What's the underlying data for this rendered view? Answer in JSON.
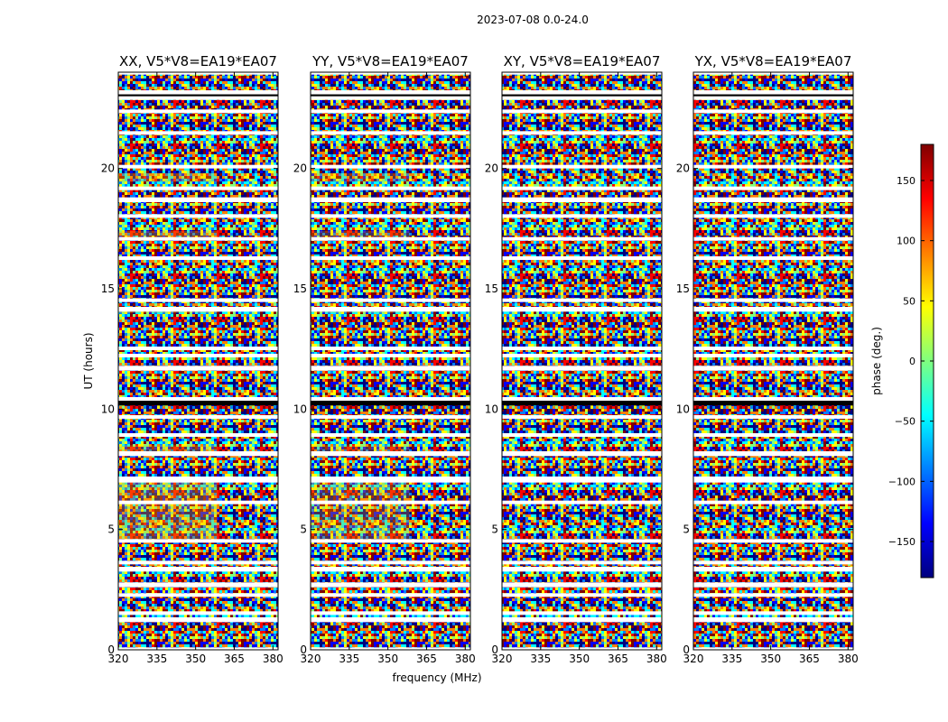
{
  "chart_data": {
    "type": "heatmap",
    "title": "2023-07-08 0.0-24.0",
    "xlabel": "frequency (MHz)",
    "ylabel": "UT (hours)",
    "xlim": [
      320,
      382
    ],
    "ylim": [
      0,
      24
    ],
    "xticks": [
      "320",
      "335",
      "350",
      "365",
      "380"
    ],
    "yticks": [
      "0",
      "5",
      "10",
      "15",
      "20"
    ],
    "panels": [
      {
        "title": "XX, V5*V8=EA19*EA07",
        "warm_bias": 0.55
      },
      {
        "title": "YY, V5*V8=EA19*EA07",
        "warm_bias": 0.45
      },
      {
        "title": "XY, V5*V8=EA19*EA07",
        "warm_bias": 0.0
      },
      {
        "title": "YX, V5*V8=EA19*EA07",
        "warm_bias": 0.0
      }
    ],
    "flagged_hours": [
      [
        0.0,
        0.1
      ],
      [
        1.15,
        1.35
      ],
      [
        1.45,
        1.6
      ],
      [
        2.2,
        2.35
      ],
      [
        2.6,
        2.8
      ],
      [
        3.25,
        3.45
      ],
      [
        3.55,
        3.7
      ],
      [
        4.45,
        4.6
      ],
      [
        6.05,
        6.2
      ],
      [
        6.95,
        7.2
      ],
      [
        8.05,
        8.25
      ],
      [
        8.85,
        9.0
      ],
      [
        9.6,
        9.75
      ],
      [
        10.35,
        10.5
      ],
      [
        11.6,
        11.8
      ],
      [
        12.15,
        12.3
      ],
      [
        12.45,
        12.6
      ],
      [
        14.05,
        14.25
      ],
      [
        14.45,
        14.6
      ],
      [
        16.2,
        16.35
      ],
      [
        17.0,
        17.15
      ],
      [
        17.95,
        18.1
      ],
      [
        18.6,
        18.8
      ],
      [
        19.1,
        19.25
      ],
      [
        20.0,
        20.15
      ],
      [
        21.4,
        21.55
      ],
      [
        22.3,
        22.45
      ],
      [
        22.85,
        23.05
      ],
      [
        23.05,
        23.25
      ],
      [
        23.9,
        24.0
      ]
    ],
    "dark_hours": [
      [
        10.15,
        10.35
      ],
      [
        23.0,
        23.08
      ]
    ],
    "colorbar": {
      "label": "phase (deg.)",
      "range": [
        -180,
        180
      ],
      "ticks": [
        "150",
        "100",
        "50",
        "0",
        "−50",
        "−100",
        "−150"
      ],
      "tick_values": [
        150,
        100,
        50,
        0,
        -50,
        -100,
        -150
      ],
      "colors": [
        "#00007f",
        "#0000ff",
        "#007fff",
        "#00ffff",
        "#7fff7f",
        "#ffff00",
        "#ff7f00",
        "#ff0000",
        "#7f0000"
      ]
    }
  }
}
